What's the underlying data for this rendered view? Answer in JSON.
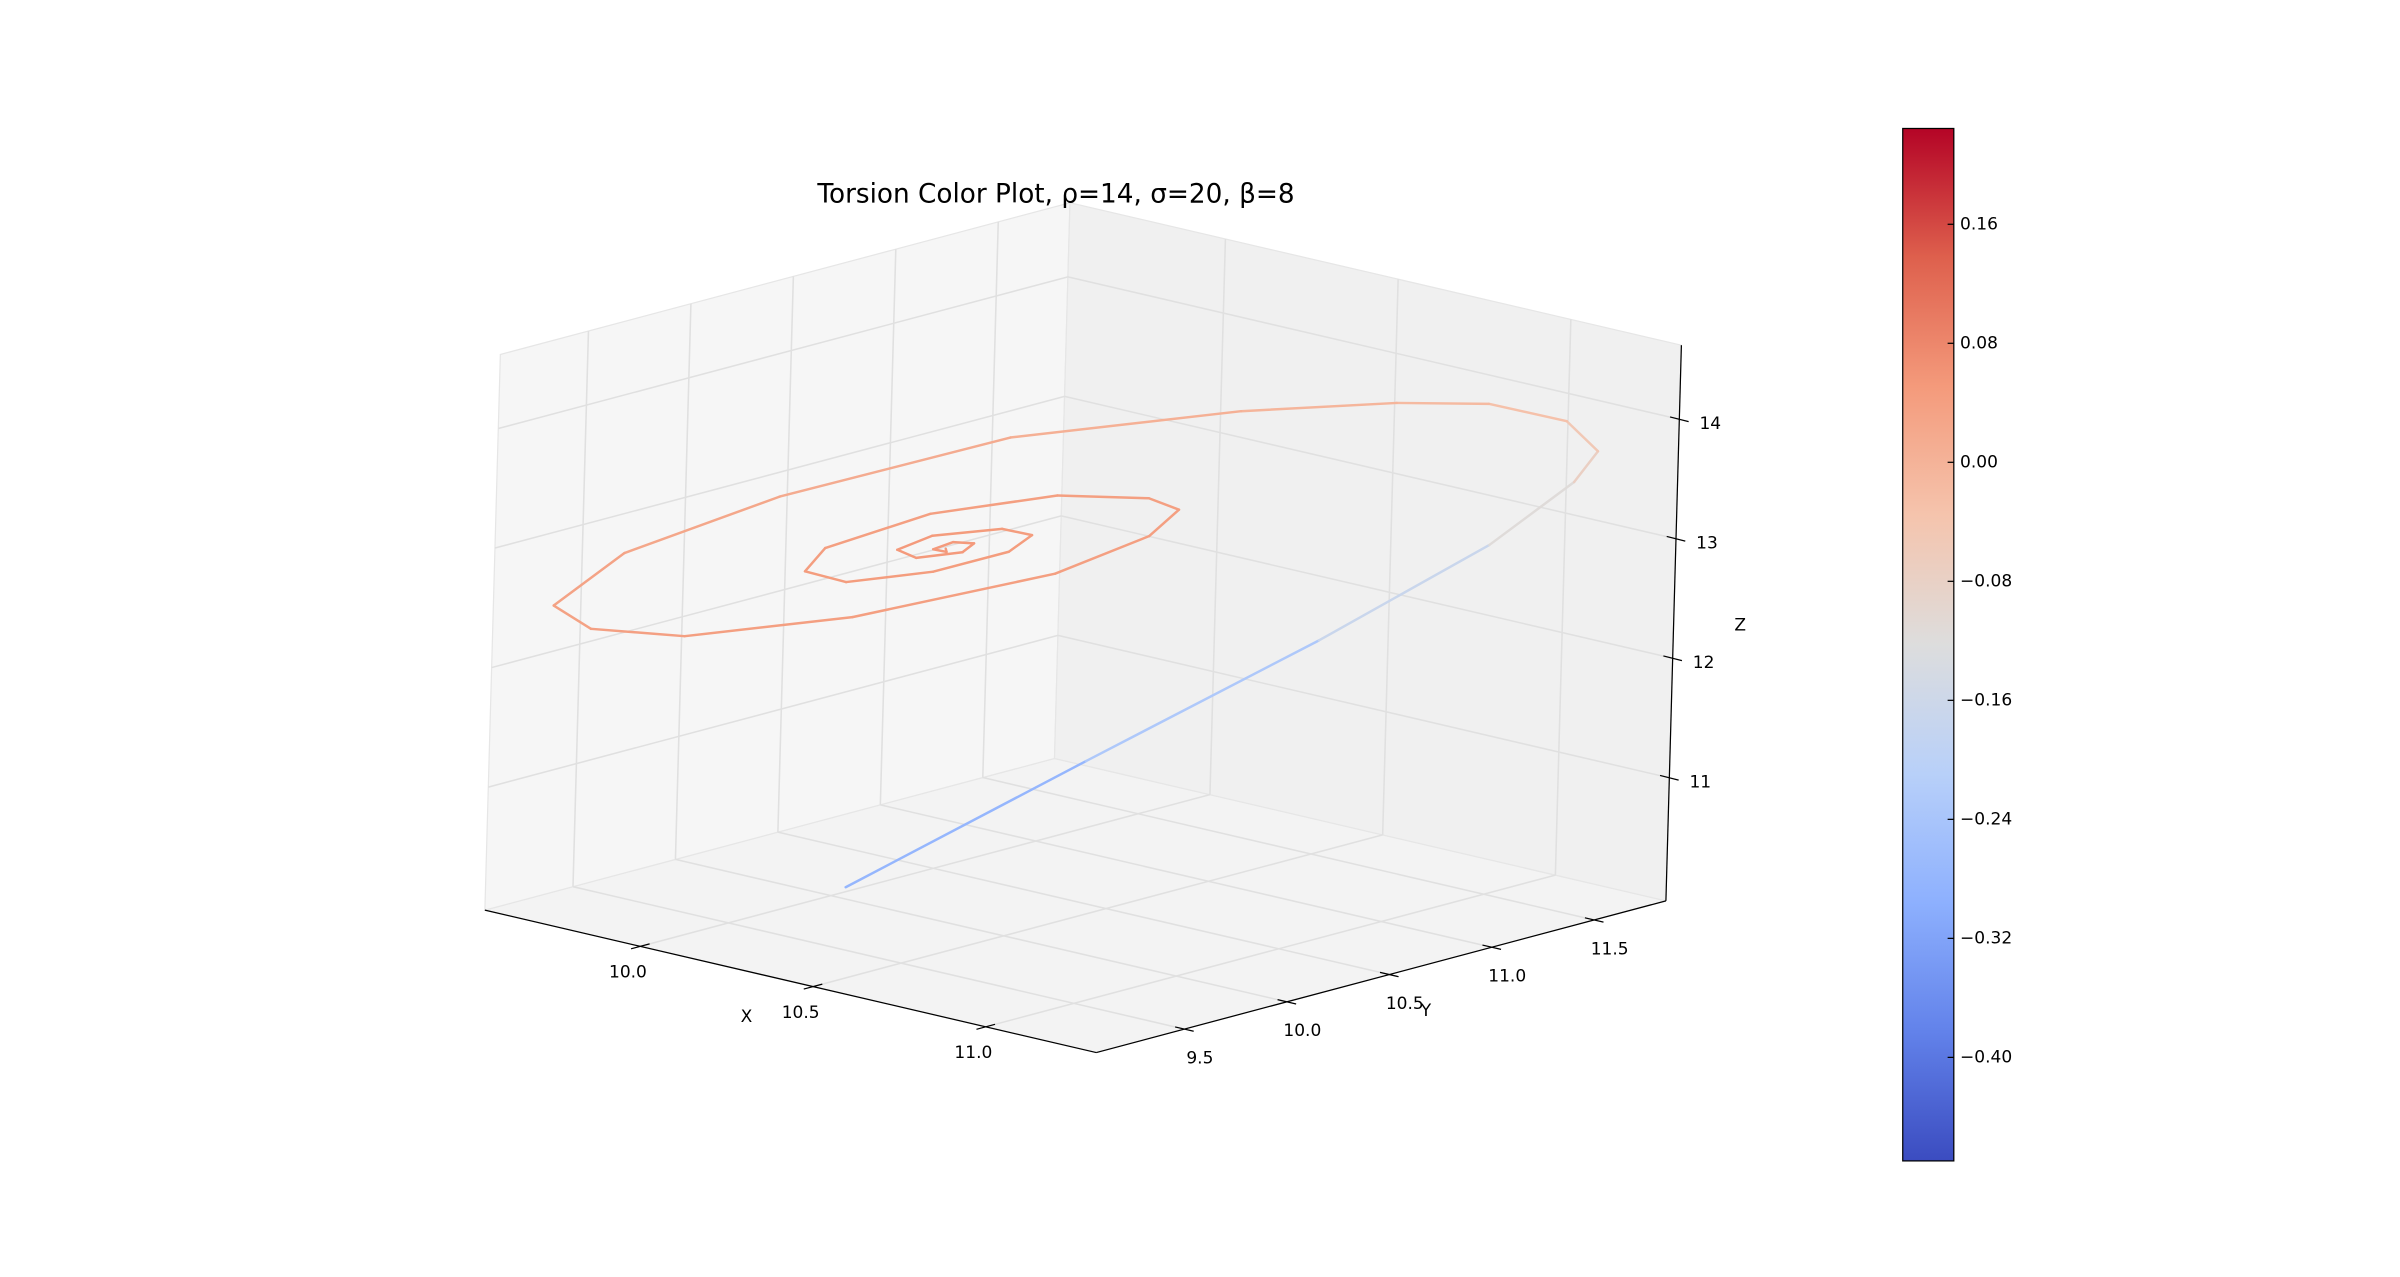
{
  "chart_data": {
    "type": "line3d",
    "title": "Torsion Color Plot, ρ=14, σ=20, β=8",
    "xlabel": "X",
    "ylabel": "Y",
    "zlabel": "Z",
    "x": [
      10.27,
      10.46,
      10.67,
      10.93,
      11.04,
      11.27,
      11.02,
      10.73,
      10.5,
      10.17,
      9.76,
      9.54,
      9.49,
      9.63,
      9.85,
      10.12,
      10.42,
      10.66,
      10.67,
      10.59,
      10.45,
      10.21,
      10.01,
      9.95,
      10.04,
      10.2,
      10.35,
      10.42,
      10.38,
      10.27,
      10.14,
      10.14,
      10.23,
      10.31,
      10.29,
      10.23,
      10.22,
      10.27,
      10.25
    ],
    "y": [
      9.61,
      10.45,
      11.22,
      11.6,
      11.82,
      11.54,
      11.81,
      11.92,
      11.86,
      11.66,
      11.23,
      10.48,
      9.81,
      9.23,
      9.04,
      9.04,
      9.35,
      9.93,
      10.37,
      10.65,
      10.74,
      10.7,
      10.42,
      10.01,
      9.76,
      9.69,
      9.86,
      10.11,
      10.29,
      10.33,
      10.21,
      10.04,
      9.98,
      10.07,
      10.16,
      10.16,
      10.08,
      10.06,
      10.09
    ],
    "z": [
      10.4,
      11.2,
      12.0,
      12.8,
      13.3,
      13.84,
      13.8,
      13.7,
      13.58,
      13.38,
      13.08,
      12.78,
      12.58,
      12.5,
      12.54,
      12.66,
      12.88,
      13.14,
      13.26,
      13.3,
      13.26,
      13.14,
      12.98,
      12.84,
      12.82,
      12.87,
      12.98,
      13.08,
      13.11,
      13.07,
      12.98,
      12.94,
      12.96,
      13.02,
      13.04,
      13.01,
      12.98,
      13.0,
      13.0
    ],
    "c": [
      -0.3,
      -0.26,
      -0.2,
      -0.14,
      -0.09,
      -0.06,
      -0.04,
      -0.02,
      -0.01,
      0.0,
      0.01,
      0.02,
      0.03,
      0.035,
      0.035,
      0.04,
      0.04,
      0.04,
      0.04,
      0.04,
      0.04,
      0.04,
      0.04,
      0.04,
      0.045,
      0.045,
      0.045,
      0.045,
      0.045,
      0.045,
      0.05,
      0.05,
      0.05,
      0.05,
      0.05,
      0.05,
      0.05,
      0.05,
      0.05
    ],
    "xlim": [
      9.55,
      11.32
    ],
    "ylim": [
      9.07,
      11.85
    ],
    "zlim": [
      9.97,
      14.62
    ],
    "xticks": [
      {
        "value": 10,
        "label": "10.0"
      },
      10.5,
      {
        "value": 11,
        "label": "11.0"
      }
    ],
    "yticks": [
      9.5,
      {
        "value": 10,
        "label": "10.0"
      },
      10.5,
      {
        "value": 11,
        "label": "11.0"
      },
      11.5
    ],
    "zticks": [
      11,
      12,
      13,
      14
    ],
    "clim": [
      -0.4696,
      0.2244
    ],
    "cticks": [
      {
        "value": -0.4,
        "label": "−0.40"
      },
      {
        "value": -0.32,
        "label": "−0.32"
      },
      {
        "value": -0.24,
        "label": "−0.24"
      },
      {
        "value": -0.16,
        "label": "−0.16"
      },
      {
        "value": -0.08,
        "label": "−0.08"
      },
      {
        "value": 0,
        "label": "0.00"
      },
      0.08,
      0.16
    ],
    "colormap": [
      "#3b4cc0",
      "#6282ea",
      "#8db0fe",
      "#b8d0f9",
      "#dddddd",
      "#f5c4ad",
      "#f49a7b",
      "#de604d",
      "#b40426"
    ],
    "grid": true
  }
}
